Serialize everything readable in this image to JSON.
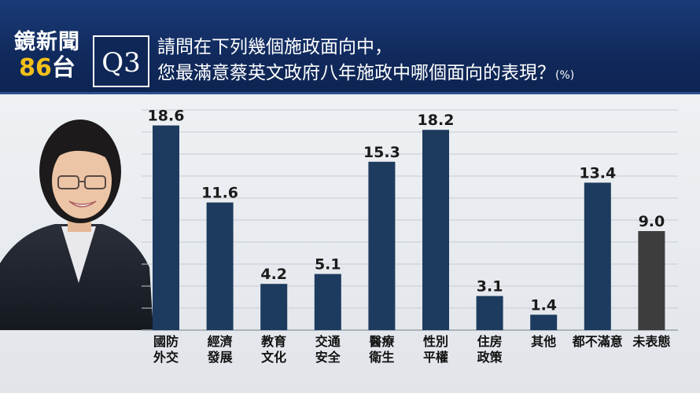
{
  "header": {
    "brand": "鏡新聞",
    "channel_num": "86",
    "channel_suffix": "台",
    "question_no": "Q3",
    "question_line1": "請問在下列幾個施政面向中，",
    "question_line2": "您最滿意蔡英文政府八年施政中哪個面向的表現？",
    "question_unit": "(%)"
  },
  "chart_data": {
    "type": "bar",
    "categories": [
      [
        "國防",
        "外交"
      ],
      [
        "經濟",
        "發展"
      ],
      [
        "教育",
        "文化"
      ],
      [
        "交通",
        "安全"
      ],
      [
        "醫療",
        "衛生"
      ],
      [
        "性別",
        "平權"
      ],
      [
        "住房",
        "政策"
      ],
      [
        "其他"
      ],
      [
        "都不滿意"
      ],
      [
        "未表態"
      ]
    ],
    "values": [
      18.6,
      11.6,
      4.2,
      5.1,
      15.3,
      18.2,
      3.1,
      1.4,
      13.4,
      9.0
    ],
    "value_labels": [
      "18.6",
      "11.6",
      "4.2",
      "5.1",
      "15.3",
      "18.2",
      "3.1",
      "1.4",
      "13.4",
      "9.0"
    ],
    "colors": [
      "#1d3b5e",
      "#1d3b5e",
      "#1d3b5e",
      "#1d3b5e",
      "#1d3b5e",
      "#1d3b5e",
      "#1d3b5e",
      "#1d3b5e",
      "#1d3b5e",
      "#3d3d3d"
    ],
    "ylim": [
      0,
      20
    ],
    "grid": true
  }
}
